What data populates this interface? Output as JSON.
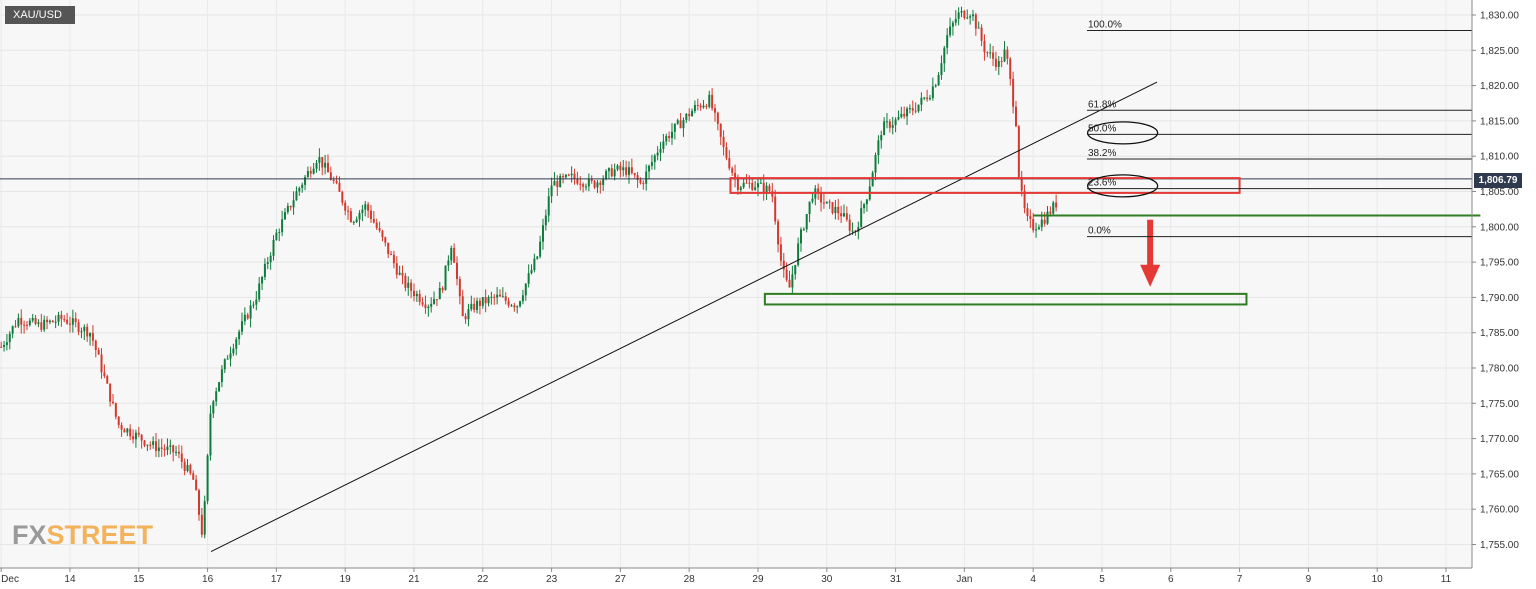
{
  "symbol": "XAU/USD",
  "current_price_label": "1,806.79",
  "logo": {
    "part1": "FX",
    "part2": "STREET"
  },
  "colors": {
    "up": "#0f7b3c",
    "down": "#d23a2f",
    "zone_red": "#e53935",
    "zone_green": "#2e7d1e",
    "arrow": "#e53935"
  },
  "chart_data": {
    "type": "candlestick",
    "title": "",
    "ylim": [
      1752,
      1832
    ],
    "y_ticks": [
      {
        "value": 1830,
        "label": "1,830.00"
      },
      {
        "value": 1825,
        "label": "1,825.00"
      },
      {
        "value": 1820,
        "label": "1,820.00"
      },
      {
        "value": 1815,
        "label": "1,815.00"
      },
      {
        "value": 1810,
        "label": "1,810.00"
      },
      {
        "value": 1805,
        "label": "1,805.00"
      },
      {
        "value": 1800,
        "label": "1,800.00"
      },
      {
        "value": 1795,
        "label": "1,795.00"
      },
      {
        "value": 1790,
        "label": "1,790.00"
      },
      {
        "value": 1785,
        "label": "1,785.00"
      },
      {
        "value": 1780,
        "label": "1,780.00"
      },
      {
        "value": 1775,
        "label": "1,775.00"
      },
      {
        "value": 1770,
        "label": "1,770.00"
      },
      {
        "value": 1765,
        "label": "1,765.00"
      },
      {
        "value": 1760,
        "label": "1,760.00"
      },
      {
        "value": 1755,
        "label": "1,755.00"
      }
    ],
    "x_ticks": [
      {
        "t": 0,
        "label": "Dec"
      },
      {
        "t": 1,
        "label": "14"
      },
      {
        "t": 2,
        "label": "15"
      },
      {
        "t": 3,
        "label": "16"
      },
      {
        "t": 4,
        "label": "17"
      },
      {
        "t": 5,
        "label": "19"
      },
      {
        "t": 6,
        "label": "21"
      },
      {
        "t": 7,
        "label": "22"
      },
      {
        "t": 8,
        "label": "23"
      },
      {
        "t": 9,
        "label": "27"
      },
      {
        "t": 10,
        "label": "28"
      },
      {
        "t": 11,
        "label": "29"
      },
      {
        "t": 12,
        "label": "30"
      },
      {
        "t": 13,
        "label": "31"
      },
      {
        "t": 14,
        "label": "Jan"
      },
      {
        "t": 15,
        "label": "4"
      },
      {
        "t": 16,
        "label": "5"
      },
      {
        "t": 17,
        "label": "6"
      },
      {
        "t": 18,
        "label": "7"
      },
      {
        "t": 19,
        "label": "9"
      },
      {
        "t": 20,
        "label": "10"
      },
      {
        "t": 21,
        "label": "11"
      }
    ],
    "xlim": [
      0,
      21.5
    ],
    "current_price": 1806.79,
    "price_anchors": [
      [
        0,
        1783
      ],
      [
        0.25,
        1787
      ],
      [
        0.55,
        1786
      ],
      [
        0.9,
        1787
      ],
      [
        1.3,
        1785
      ],
      [
        1.55,
        1777
      ],
      [
        1.7,
        1772
      ],
      [
        2.2,
        1769
      ],
      [
        2.55,
        1768
      ],
      [
        2.8,
        1764
      ],
      [
        2.93,
        1756
      ],
      [
        3.05,
        1775
      ],
      [
        3.3,
        1782
      ],
      [
        3.7,
        1790
      ],
      [
        4.0,
        1799
      ],
      [
        4.3,
        1805
      ],
      [
        4.6,
        1810
      ],
      [
        4.85,
        1806
      ],
      [
        5.1,
        1801
      ],
      [
        5.3,
        1803
      ],
      [
        5.6,
        1797
      ],
      [
        5.85,
        1792
      ],
      [
        6.2,
        1789
      ],
      [
        6.4,
        1791
      ],
      [
        6.55,
        1798
      ],
      [
        6.7,
        1787
      ],
      [
        6.9,
        1789
      ],
      [
        7.2,
        1790
      ],
      [
        7.5,
        1789
      ],
      [
        7.8,
        1796
      ],
      [
        8.0,
        1806
      ],
      [
        8.3,
        1807
      ],
      [
        8.6,
        1806
      ],
      [
        8.9,
        1808
      ],
      [
        9.1,
        1808
      ],
      [
        9.3,
        1806
      ],
      [
        9.6,
        1812
      ],
      [
        9.9,
        1815
      ],
      [
        10.1,
        1817
      ],
      [
        10.3,
        1818
      ],
      [
        10.5,
        1811
      ],
      [
        10.7,
        1806
      ],
      [
        10.95,
        1806
      ],
      [
        11.2,
        1805
      ],
      [
        11.35,
        1794
      ],
      [
        11.45,
        1791
      ],
      [
        11.6,
        1798
      ],
      [
        11.8,
        1805
      ],
      [
        12.0,
        1803
      ],
      [
        12.2,
        1802
      ],
      [
        12.4,
        1799
      ],
      [
        12.6,
        1805
      ],
      [
        12.8,
        1814
      ],
      [
        13.0,
        1815
      ],
      [
        13.3,
        1817
      ],
      [
        13.5,
        1819
      ],
      [
        13.6,
        1821
      ],
      [
        13.75,
        1827
      ],
      [
        13.9,
        1830
      ],
      [
        14.1,
        1830.5
      ],
      [
        14.3,
        1825
      ],
      [
        14.5,
        1823
      ],
      [
        14.6,
        1825
      ],
      [
        14.75,
        1815
      ],
      [
        14.8,
        1806
      ],
      [
        14.9,
        1801
      ],
      [
        15.0,
        1800
      ],
      [
        15.15,
        1801
      ],
      [
        15.35,
        1803.5
      ]
    ],
    "fib_levels": [
      {
        "label": "100.0%",
        "value": 1827.8
      },
      {
        "label": "61.8%",
        "value": 1816.5
      },
      {
        "label": "50.0%",
        "value": 1813.1
      },
      {
        "label": "38.2%",
        "value": 1809.6
      },
      {
        "label": "23.6%",
        "value": 1805.4
      },
      {
        "label": "0.0%",
        "value": 1798.6
      }
    ],
    "trendline": {
      "start": [
        3.05,
        1754
      ],
      "end": [
        16.8,
        1820.5
      ]
    },
    "resistance_zone": {
      "t_start": 10.6,
      "t_end": 18.0,
      "y_low": 1804.8,
      "y_high": 1806.9
    },
    "support_level": {
      "t_start": 15.0,
      "t_end": 21.5,
      "value": 1801.6
    },
    "target_zone": {
      "t_start": 11.1,
      "t_end": 18.1,
      "y_low": 1789.0,
      "y_high": 1790.5
    },
    "down_arrow": {
      "t": 16.7,
      "y_from": 1801.0,
      "y_to": 1791.5
    },
    "ellipses": [
      {
        "t": 16.3,
        "value": 1813.3,
        "rx": 35,
        "ry": 11
      },
      {
        "t": 16.3,
        "value": 1805.8,
        "rx": 35,
        "ry": 11
      }
    ]
  }
}
